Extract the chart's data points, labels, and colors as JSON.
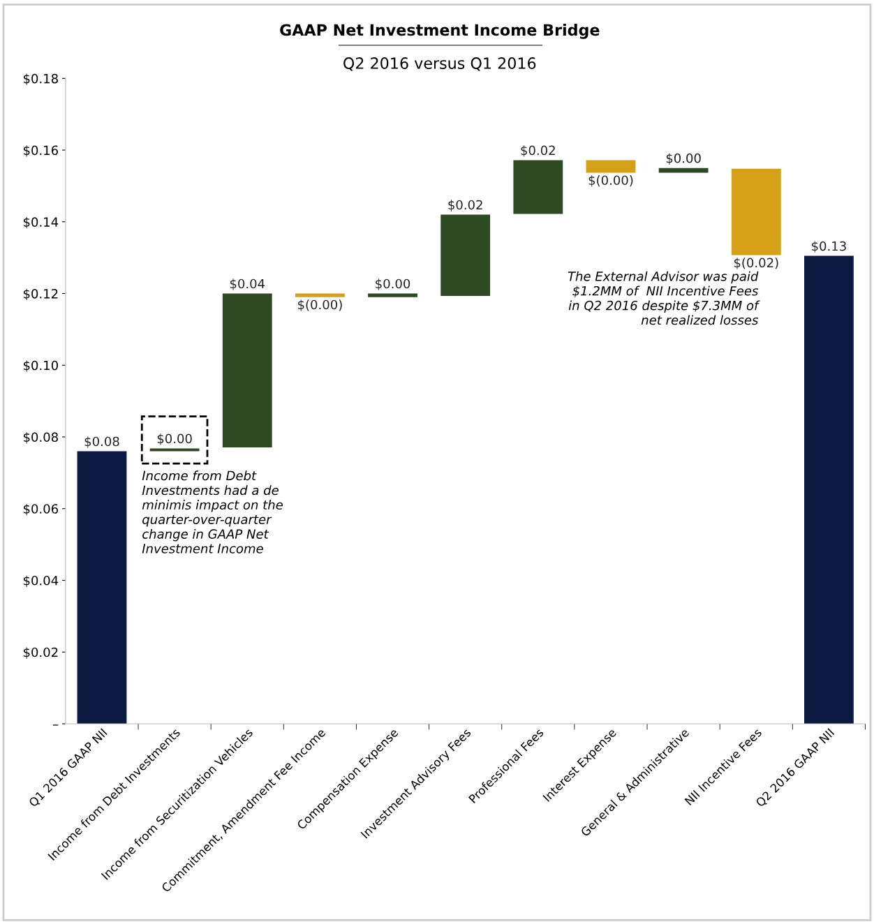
{
  "chart_data": {
    "type": "bar",
    "title": "GAAP Net Investment Income Bridge",
    "subtitle": "Q2 2016 versus Q1 2016",
    "categories": [
      "Q1 2016 GAAP NII",
      "Income from Debt Investments",
      "Income from Securitization Vehicles",
      "Commitment, Amendment Fee Income",
      "Compensation Expense",
      "Investment Advisory Fees",
      "Professional Fees",
      "Interest Expense",
      "General & Administrative",
      "NII Incentive Fees",
      "Q2 2016 GAAP NII"
    ],
    "values": [
      0.076,
      0.0008,
      0.0429,
      -0.001,
      0.001,
      0.0227,
      0.015,
      -0.0035,
      0.0013,
      -0.0241,
      0.1305
    ],
    "base": [
      0,
      0.076,
      0.0771,
      0.12,
      0.119,
      0.1193,
      0.1422,
      0.1572,
      0.1537,
      0.1548,
      0
    ],
    "colors": [
      "#0b1a40",
      "#2d4a22",
      "#2d4a22",
      "#d4a017",
      "#2d4a22",
      "#2d4a22",
      "#2d4a22",
      "#d4a017",
      "#2d4a22",
      "#d4a017",
      "#0b1a40"
    ],
    "value_labels": [
      "$0.08",
      "$0.00",
      "$0.04",
      "$(0.00)",
      "$0.00",
      "$0.02",
      "$0.02",
      "$(0.00)",
      "$0.00",
      "$(0.02)",
      "$0.13"
    ],
    "ylim": [
      0,
      0.18
    ],
    "yticks": [
      {
        "value": 0,
        "label": "–"
      },
      {
        "value": 0.02,
        "label": "$0.02"
      },
      {
        "value": 0.04,
        "label": "$0.04"
      },
      {
        "value": 0.06,
        "label": "$0.06"
      },
      {
        "value": 0.08,
        "label": "$0.08"
      },
      {
        "value": 0.1,
        "label": "$0.10"
      },
      {
        "value": 0.12,
        "label": "$0.12"
      },
      {
        "value": 0.14,
        "label": "$0.14"
      },
      {
        "value": 0.16,
        "label": "$0.16"
      },
      {
        "value": 0.18,
        "label": "$0.18"
      }
    ],
    "annotations": [
      "Income from Debt\nInvestments had a de\nminimis impact on the\nquarter-over-quarter\nchange in GAAP Net\nInvestment Income",
      "The External Advisor was paid\n$1.2MM of  NII Incentive Fees\nin Q2 2016 despite $7.3MM of\nnet realized losses"
    ],
    "grid": false,
    "legend": false
  }
}
